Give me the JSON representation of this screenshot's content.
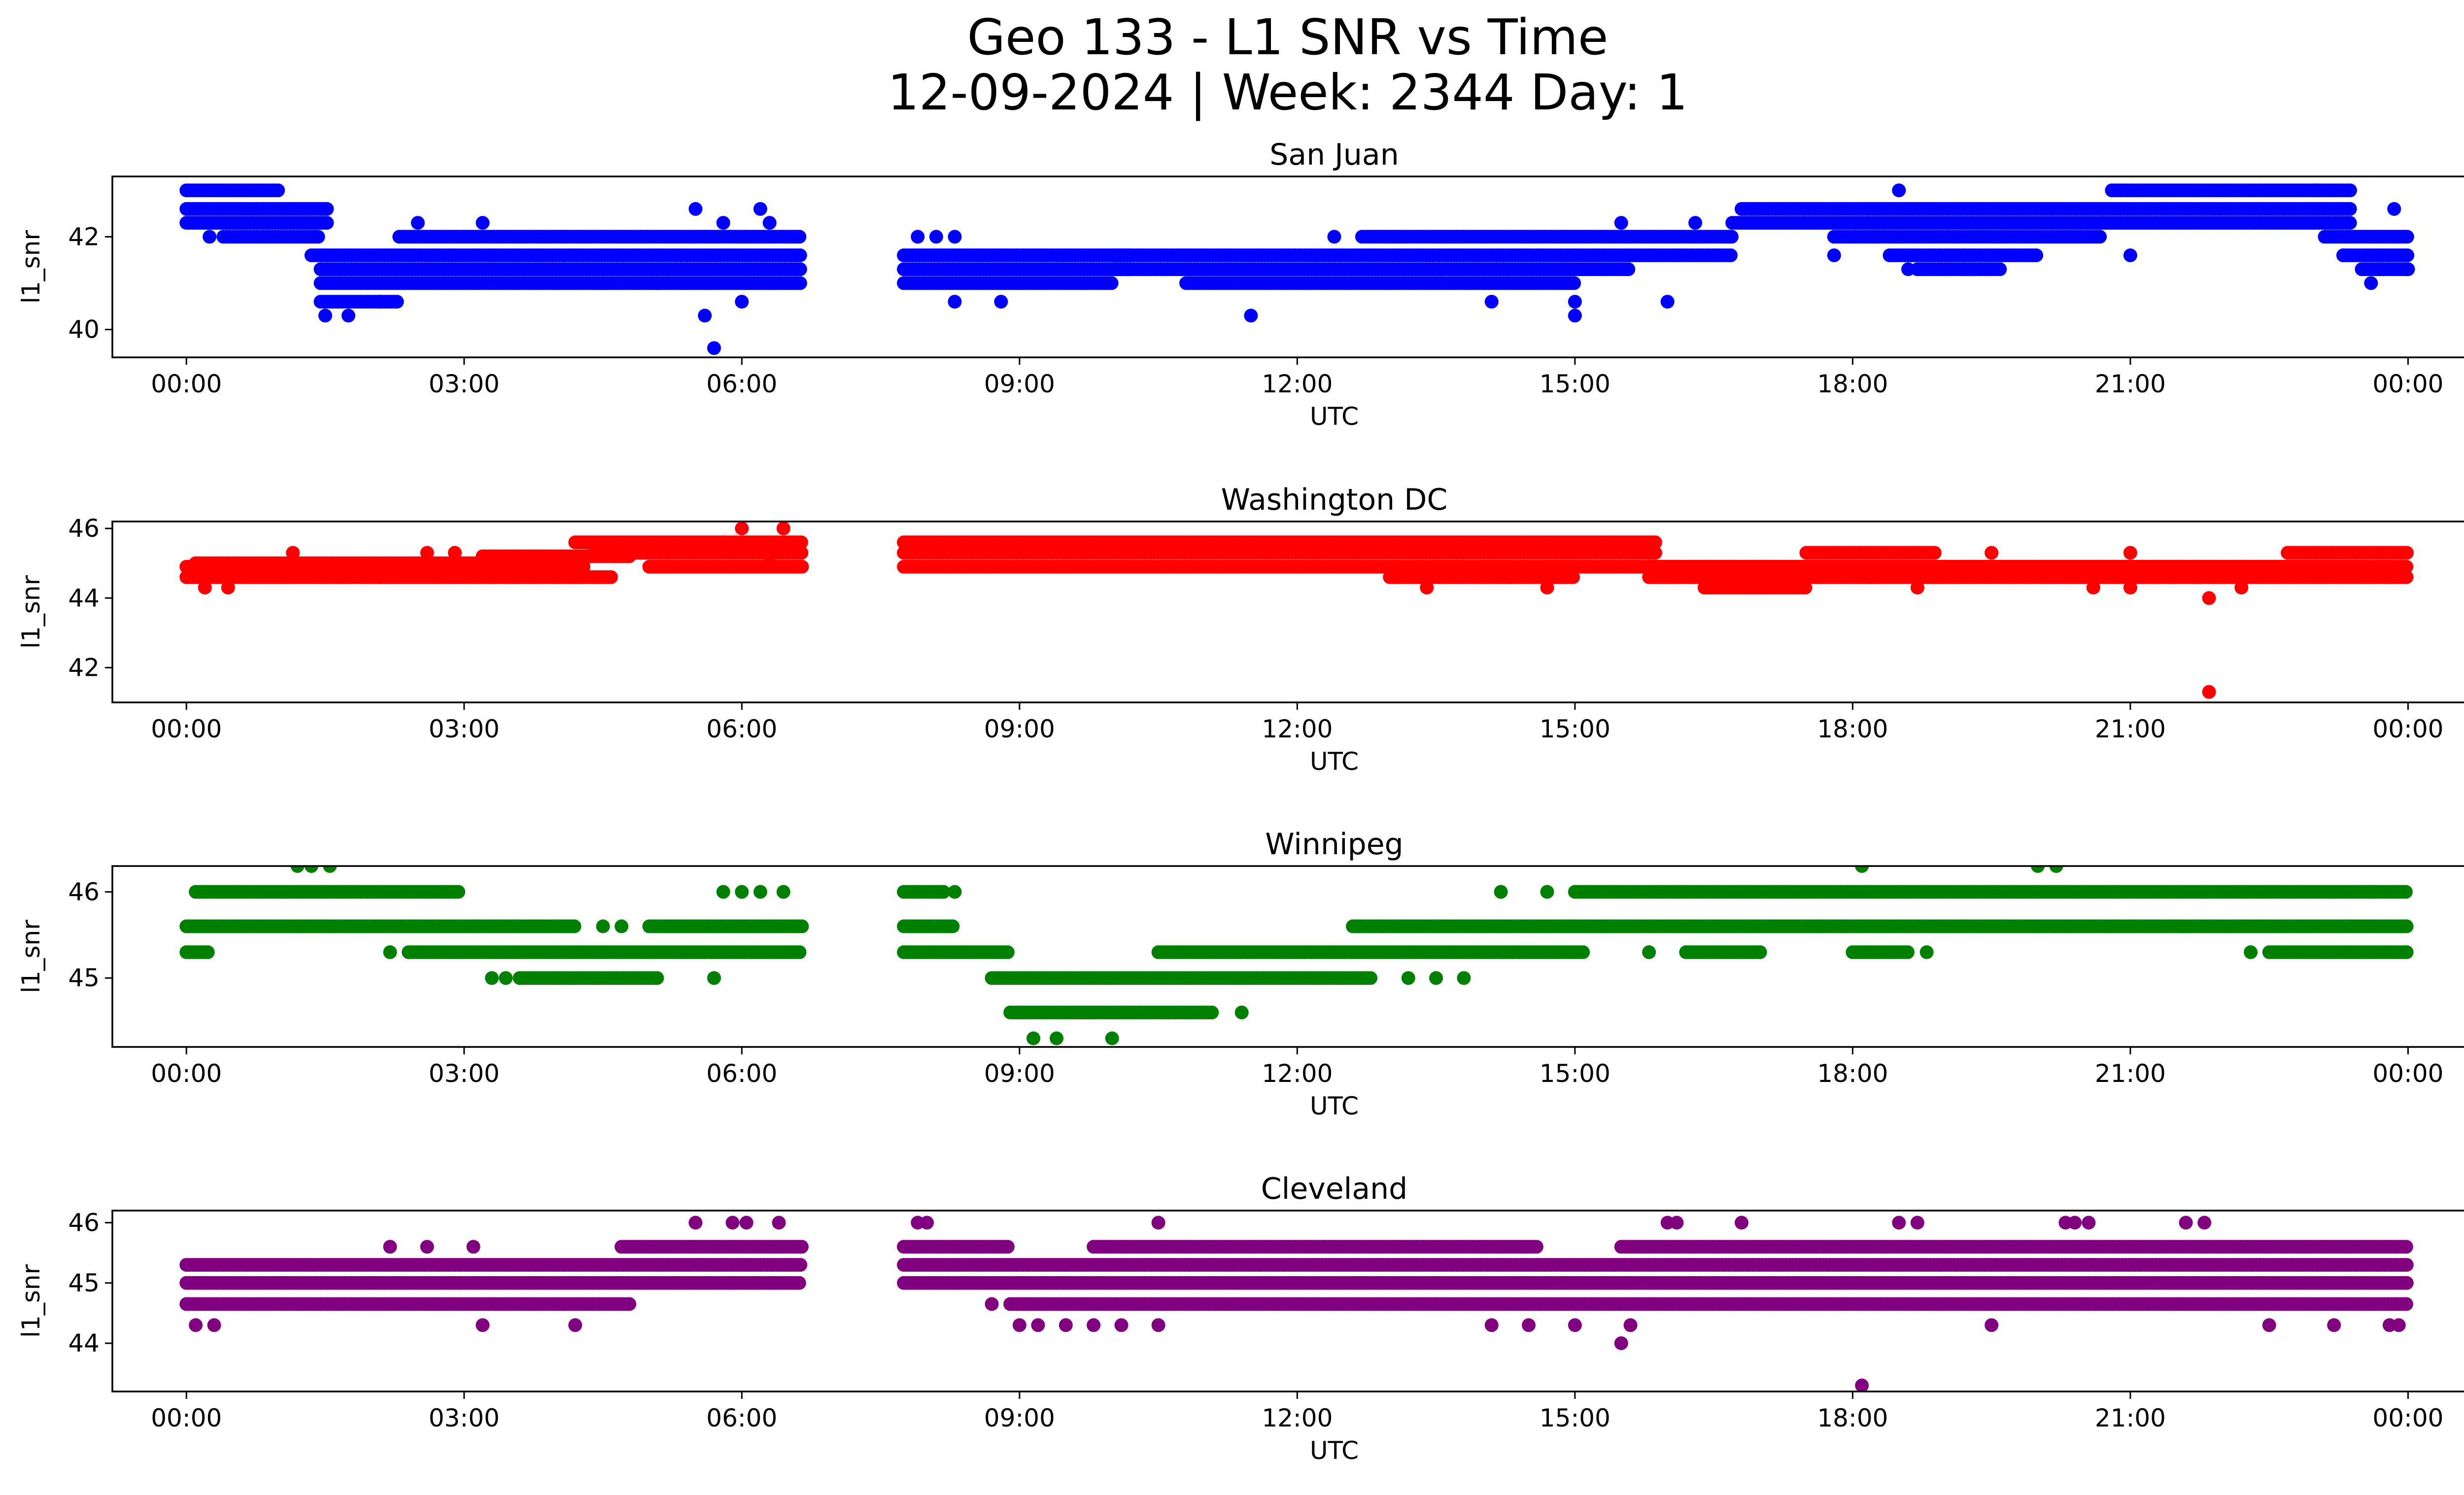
{
  "figure": {
    "title_line1": "Geo 133 - L1 SNR vs Time",
    "title_line2": "12-09-2024 | Week: 2344 Day: 1"
  },
  "chart_data": [
    {
      "type": "scatter",
      "title": "San Juan",
      "color": "#0000ff",
      "xlabel": "UTC",
      "ylabel": "l1_snr",
      "xlim": [
        -0.8,
        25.6
      ],
      "ylim": [
        39.4,
        43.3
      ],
      "xticks": [
        0,
        3,
        6,
        9,
        12,
        15,
        18,
        21,
        24
      ],
      "xtick_labels": [
        "00:00",
        "03:00",
        "06:00",
        "09:00",
        "12:00",
        "15:00",
        "18:00",
        "21:00",
        "00:00"
      ],
      "yticks": [
        40,
        42
      ],
      "ytick_labels": [
        "40",
        "42"
      ],
      "bands": [
        {
          "x": [
            0.0,
            1.0
          ],
          "y": 43.0
        },
        {
          "x": [
            0.0,
            1.55
          ],
          "y": 42.6
        },
        {
          "x": [
            0.0,
            1.55
          ],
          "y": 42.3
        },
        {
          "x": [
            0.4,
            1.45
          ],
          "y": 42.0
        },
        {
          "x": [
            1.35,
            6.65
          ],
          "y": 41.6
        },
        {
          "x": [
            1.45,
            6.65
          ],
          "y": 41.3
        },
        {
          "x": [
            1.45,
            6.65
          ],
          "y": 41.0
        },
        {
          "x": [
            1.45,
            2.3
          ],
          "y": 40.6
        },
        {
          "x": [
            2.3,
            6.65
          ],
          "y": 42.0
        },
        {
          "x": [
            7.75,
            10.2
          ],
          "y": 41.6
        },
        {
          "x": [
            7.75,
            10.2
          ],
          "y": 41.3
        },
        {
          "x": [
            7.75,
            10.0
          ],
          "y": 41.0
        },
        {
          "x": [
            10.0,
            15.6
          ],
          "y": 41.3
        },
        {
          "x": [
            10.0,
            15.0
          ],
          "y": 41.6
        },
        {
          "x": [
            10.8,
            15.0
          ],
          "y": 41.0
        },
        {
          "x": [
            12.7,
            16.7
          ],
          "y": 42.0
        },
        {
          "x": [
            15.0,
            16.7
          ],
          "y": 41.6
        },
        {
          "x": [
            16.7,
            20.7
          ],
          "y": 42.3
        },
        {
          "x": [
            16.8,
            20.7
          ],
          "y": 42.6
        },
        {
          "x": [
            17.8,
            20.7
          ],
          "y": 42.0
        },
        {
          "x": [
            18.4,
            20.0
          ],
          "y": 41.6
        },
        {
          "x": [
            18.7,
            19.6
          ],
          "y": 41.3
        },
        {
          "x": [
            20.7,
            23.4
          ],
          "y": 42.6
        },
        {
          "x": [
            20.7,
            23.4
          ],
          "y": 42.3
        },
        {
          "x": [
            20.8,
            23.4
          ],
          "y": 43.0
        },
        {
          "x": [
            23.1,
            24.0
          ],
          "y": 42.0
        },
        {
          "x": [
            23.3,
            24.0
          ],
          "y": 41.6
        },
        {
          "x": [
            23.5,
            24.0
          ],
          "y": 41.3
        }
      ],
      "points": [
        [
          0.25,
          42.0
        ],
        [
          1.5,
          40.3
        ],
        [
          1.75,
          40.3
        ],
        [
          2.1,
          40.6
        ],
        [
          2.5,
          42.3
        ],
        [
          2.8,
          41.0
        ],
        [
          3.2,
          42.3
        ],
        [
          4.5,
          41.0
        ],
        [
          5.1,
          41.0
        ],
        [
          5.5,
          42.6
        ],
        [
          5.7,
          39.6
        ],
        [
          5.6,
          40.3
        ],
        [
          5.8,
          42.3
        ],
        [
          6.0,
          40.6
        ],
        [
          6.2,
          42.6
        ],
        [
          6.3,
          42.3
        ],
        [
          7.9,
          42.0
        ],
        [
          8.1,
          42.0
        ],
        [
          8.3,
          42.0
        ],
        [
          8.3,
          40.6
        ],
        [
          8.8,
          40.6
        ],
        [
          11.5,
          40.3
        ],
        [
          12.4,
          42.0
        ],
        [
          14.1,
          40.6
        ],
        [
          15.0,
          40.3
        ],
        [
          15.0,
          40.6
        ],
        [
          15.5,
          42.3
        ],
        [
          16.0,
          40.6
        ],
        [
          16.3,
          42.3
        ],
        [
          17.8,
          41.6
        ],
        [
          18.5,
          43.0
        ],
        [
          18.6,
          41.3
        ],
        [
          19.2,
          41.6
        ],
        [
          21.0,
          41.6
        ],
        [
          23.0,
          43.0
        ],
        [
          23.3,
          41.6
        ],
        [
          23.6,
          41.0
        ],
        [
          23.85,
          42.6
        ],
        [
          24.0,
          41.3
        ]
      ]
    },
    {
      "type": "scatter",
      "title": "Washington DC",
      "color": "#ff0000",
      "xlabel": "UTC",
      "ylabel": "l1_snr",
      "xlim": [
        -0.8,
        25.6
      ],
      "ylim": [
        41.0,
        46.2
      ],
      "xticks": [
        0,
        3,
        6,
        9,
        12,
        15,
        18,
        21,
        24
      ],
      "xtick_labels": [
        "00:00",
        "03:00",
        "06:00",
        "09:00",
        "12:00",
        "15:00",
        "18:00",
        "21:00",
        "00:00"
      ],
      "yticks": [
        42,
        44,
        46
      ],
      "ytick_labels": [
        "42",
        "44",
        "46"
      ],
      "bands": [
        {
          "x": [
            0.0,
            4.3
          ],
          "y": 44.9
        },
        {
          "x": [
            0.0,
            4.6
          ],
          "y": 44.6
        },
        {
          "x": [
            0.1,
            3.5
          ],
          "y": 45.0
        },
        {
          "x": [
            3.2,
            4.8
          ],
          "y": 45.2
        },
        {
          "x": [
            4.2,
            6.65
          ],
          "y": 45.6
        },
        {
          "x": [
            4.4,
            6.65
          ],
          "y": 45.3
        },
        {
          "x": [
            5.0,
            6.65
          ],
          "y": 44.9
        },
        {
          "x": [
            7.75,
            15.9
          ],
          "y": 45.6
        },
        {
          "x": [
            7.75,
            15.9
          ],
          "y": 45.3
        },
        {
          "x": [
            7.75,
            15.9
          ],
          "y": 44.9
        },
        {
          "x": [
            13.0,
            15.0
          ],
          "y": 44.6
        },
        {
          "x": [
            15.6,
            24.0
          ],
          "y": 44.9
        },
        {
          "x": [
            15.8,
            24.0
          ],
          "y": 44.6
        },
        {
          "x": [
            16.4,
            17.5
          ],
          "y": 44.3
        },
        {
          "x": [
            17.5,
            18.9
          ],
          "y": 45.3
        },
        {
          "x": [
            22.7,
            24.0
          ],
          "y": 45.3
        }
      ],
      "points": [
        [
          0.2,
          44.3
        ],
        [
          0.45,
          44.3
        ],
        [
          1.15,
          45.3
        ],
        [
          1.7,
          44.6
        ],
        [
          2.1,
          44.6
        ],
        [
          2.6,
          45.3
        ],
        [
          2.9,
          45.3
        ],
        [
          4.2,
          44.6
        ],
        [
          5.2,
          44.9
        ],
        [
          5.8,
          45.6
        ],
        [
          6.0,
          46.0
        ],
        [
          6.3,
          45.2
        ],
        [
          6.45,
          46.0
        ],
        [
          6.6,
          44.9
        ],
        [
          9.5,
          44.9
        ],
        [
          13.4,
          44.3
        ],
        [
          14.3,
          44.6
        ],
        [
          14.7,
          44.3
        ],
        [
          15.0,
          44.9
        ],
        [
          16.4,
          44.3
        ],
        [
          17.0,
          44.3
        ],
        [
          18.2,
          44.6
        ],
        [
          18.7,
          44.3
        ],
        [
          19.5,
          45.3
        ],
        [
          20.6,
          44.3
        ],
        [
          21.0,
          45.3
        ],
        [
          21.0,
          44.3
        ],
        [
          21.85,
          44.0
        ],
        [
          21.85,
          41.3
        ],
        [
          22.2,
          44.3
        ],
        [
          22.7,
          45.3
        ]
      ]
    },
    {
      "type": "scatter",
      "title": "Winnipeg",
      "color": "#008000",
      "xlabel": "UTC",
      "ylabel": "l1_snr",
      "xlim": [
        -0.8,
        25.6
      ],
      "ylim": [
        44.2,
        46.3
      ],
      "xticks": [
        0,
        3,
        6,
        9,
        12,
        15,
        18,
        21,
        24
      ],
      "xtick_labels": [
        "00:00",
        "03:00",
        "06:00",
        "09:00",
        "12:00",
        "15:00",
        "18:00",
        "21:00",
        "00:00"
      ],
      "yticks": [
        45,
        46
      ],
      "ytick_labels": [
        "45",
        "46"
      ],
      "bands": [
        {
          "x": [
            0.1,
            2.95
          ],
          "y": 46.0
        },
        {
          "x": [
            0.0,
            4.2
          ],
          "y": 45.6
        },
        {
          "x": [
            0.0,
            0.25
          ],
          "y": 45.3
        },
        {
          "x": [
            2.4,
            6.65
          ],
          "y": 45.3
        },
        {
          "x": [
            3.6,
            5.1
          ],
          "y": 45.0
        },
        {
          "x": [
            5.0,
            6.65
          ],
          "y": 45.6
        },
        {
          "x": [
            7.75,
            8.2
          ],
          "y": 46.0
        },
        {
          "x": [
            7.75,
            8.3
          ],
          "y": 45.6
        },
        {
          "x": [
            7.75,
            8.9
          ],
          "y": 45.3
        },
        {
          "x": [
            8.7,
            12.8
          ],
          "y": 45.0
        },
        {
          "x": [
            8.9,
            11.1
          ],
          "y": 44.6
        },
        {
          "x": [
            10.5,
            15.1
          ],
          "y": 45.3
        },
        {
          "x": [
            12.6,
            24.0
          ],
          "y": 45.6
        },
        {
          "x": [
            15.0,
            24.0
          ],
          "y": 46.0
        },
        {
          "x": [
            16.2,
            17.0
          ],
          "y": 45.3
        },
        {
          "x": [
            18.0,
            18.6
          ],
          "y": 45.3
        },
        {
          "x": [
            22.5,
            24.0
          ],
          "y": 45.3
        }
      ],
      "points": [
        [
          1.2,
          46.3
        ],
        [
          1.35,
          46.3
        ],
        [
          1.55,
          46.3
        ],
        [
          2.2,
          45.3
        ],
        [
          3.3,
          45.0
        ],
        [
          3.45,
          45.0
        ],
        [
          4.5,
          45.6
        ],
        [
          4.7,
          45.6
        ],
        [
          5.7,
          45.0
        ],
        [
          5.8,
          46.0
        ],
        [
          6.0,
          46.0
        ],
        [
          6.2,
          46.0
        ],
        [
          6.45,
          46.0
        ],
        [
          8.1,
          46.0
        ],
        [
          8.3,
          46.0
        ],
        [
          9.15,
          44.3
        ],
        [
          9.4,
          44.3
        ],
        [
          10.0,
          44.3
        ],
        [
          11.4,
          44.6
        ],
        [
          13.2,
          45.0
        ],
        [
          13.5,
          45.0
        ],
        [
          13.8,
          45.0
        ],
        [
          14.2,
          46.0
        ],
        [
          14.7,
          46.0
        ],
        [
          15.8,
          45.3
        ],
        [
          17.0,
          45.3
        ],
        [
          18.1,
          46.3
        ],
        [
          18.8,
          45.3
        ],
        [
          20.0,
          46.3
        ],
        [
          20.2,
          46.3
        ],
        [
          22.3,
          45.3
        ],
        [
          23.2,
          46.0
        ],
        [
          23.6,
          46.0
        ]
      ]
    },
    {
      "type": "scatter",
      "title": "Cleveland",
      "color": "#800080",
      "xlabel": "UTC",
      "ylabel": "l1_snr",
      "xlim": [
        -0.8,
        25.6
      ],
      "ylim": [
        43.2,
        46.2
      ],
      "xticks": [
        0,
        3,
        6,
        9,
        12,
        15,
        18,
        21,
        24
      ],
      "xtick_labels": [
        "00:00",
        "03:00",
        "06:00",
        "09:00",
        "12:00",
        "15:00",
        "18:00",
        "21:00",
        "00:00"
      ],
      "yticks": [
        44,
        45,
        46
      ],
      "ytick_labels": [
        "44",
        "45",
        "46"
      ],
      "bands": [
        {
          "x": [
            0.0,
            6.65
          ],
          "y": 45.3
        },
        {
          "x": [
            0.0,
            5.3
          ],
          "y": 45.0
        },
        {
          "x": [
            0.0,
            4.8
          ],
          "y": 44.65
        },
        {
          "x": [
            4.7,
            6.65
          ],
          "y": 45.6
        },
        {
          "x": [
            5.3,
            6.65
          ],
          "y": 45.0
        },
        {
          "x": [
            7.75,
            24.0
          ],
          "y": 45.3
        },
        {
          "x": [
            7.75,
            24.0
          ],
          "y": 45.0
        },
        {
          "x": [
            7.75,
            8.9
          ],
          "y": 45.6
        },
        {
          "x": [
            8.9,
            24.0
          ],
          "y": 44.65
        },
        {
          "x": [
            15.5,
            24.0
          ],
          "y": 45.6
        },
        {
          "x": [
            9.8,
            14.6
          ],
          "y": 45.6
        }
      ],
      "points": [
        [
          0.1,
          44.3
        ],
        [
          0.3,
          44.3
        ],
        [
          2.2,
          45.6
        ],
        [
          2.6,
          45.6
        ],
        [
          3.1,
          45.6
        ],
        [
          3.2,
          44.3
        ],
        [
          4.2,
          44.3
        ],
        [
          5.5,
          46.0
        ],
        [
          5.9,
          46.0
        ],
        [
          6.05,
          46.0
        ],
        [
          6.4,
          46.0
        ],
        [
          7.9,
          46.0
        ],
        [
          8.0,
          46.0
        ],
        [
          8.7,
          44.65
        ],
        [
          9.0,
          44.3
        ],
        [
          9.2,
          44.3
        ],
        [
          9.5,
          44.3
        ],
        [
          9.8,
          44.3
        ],
        [
          10.1,
          44.3
        ],
        [
          10.5,
          46.0
        ],
        [
          10.5,
          44.3
        ],
        [
          14.1,
          44.3
        ],
        [
          14.5,
          44.3
        ],
        [
          15.0,
          44.3
        ],
        [
          15.5,
          44.0
        ],
        [
          15.6,
          44.3
        ],
        [
          16.0,
          46.0
        ],
        [
          16.1,
          46.0
        ],
        [
          16.8,
          46.0
        ],
        [
          18.1,
          43.3
        ],
        [
          18.5,
          46.0
        ],
        [
          18.7,
          46.0
        ],
        [
          19.5,
          44.3
        ],
        [
          20.3,
          46.0
        ],
        [
          20.4,
          46.0
        ],
        [
          20.55,
          46.0
        ],
        [
          21.6,
          46.0
        ],
        [
          21.8,
          46.0
        ],
        [
          22.5,
          44.3
        ],
        [
          23.2,
          44.3
        ],
        [
          23.8,
          44.3
        ],
        [
          23.9,
          44.3
        ]
      ]
    }
  ]
}
